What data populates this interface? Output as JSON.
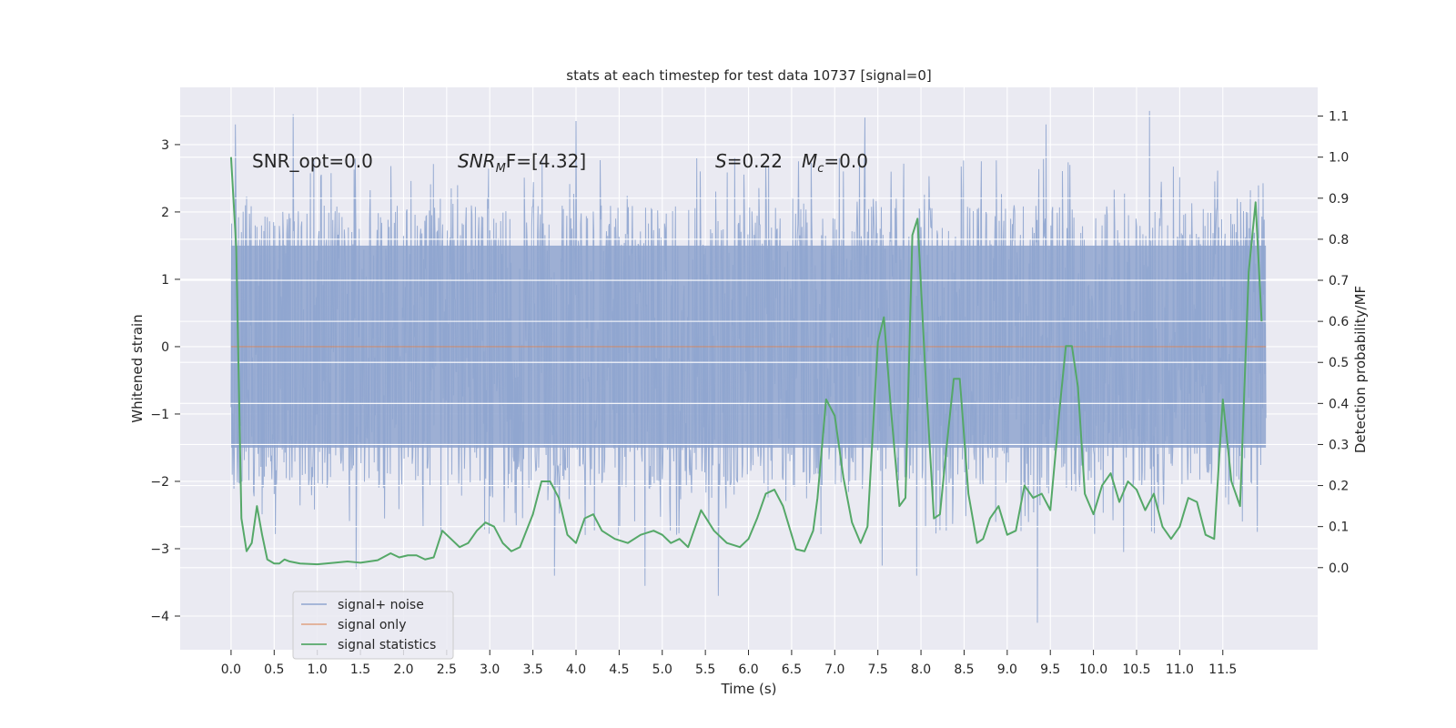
{
  "chart_data": {
    "type": "line",
    "title": "stats at each timestep for test data 10737 [signal=0]",
    "xlabel": "Time (s)",
    "ylabel": "Whitened strain",
    "y2label": "Detection probability/MF",
    "xlim": [
      -0.59,
      12.6
    ],
    "ylim": [
      -4.5,
      3.85
    ],
    "y2lim": [
      -0.2,
      1.17
    ],
    "xticks": [
      0.0,
      0.5,
      1.0,
      1.5,
      2.0,
      2.5,
      3.0,
      3.5,
      4.0,
      4.5,
      5.0,
      5.5,
      6.0,
      6.5,
      7.0,
      7.5,
      8.0,
      8.5,
      9.0,
      9.5,
      10.0,
      10.5,
      11.0,
      11.5
    ],
    "xtick_labels": [
      "0.0",
      "0.5",
      "1.0",
      "1.5",
      "2.0",
      "2.5",
      "3.0",
      "3.5",
      "4.0",
      "4.5",
      "5.0",
      "5.5",
      "6.0",
      "6.5",
      "7.0",
      "7.5",
      "8.0",
      "8.5",
      "9.0",
      "9.5",
      "10.0",
      "10.5",
      "11.0",
      "11.5"
    ],
    "yticks": [
      3,
      2,
      1,
      0,
      -1,
      -2,
      -3,
      -4
    ],
    "ytick_labels": [
      "3",
      "2",
      "1",
      "0",
      "−1",
      "−2",
      "−3",
      "−4"
    ],
    "y2ticks": [
      1.1,
      1.0,
      0.9,
      0.8,
      0.7,
      0.6,
      0.5,
      0.4,
      0.3,
      0.2,
      0.1,
      0.0
    ],
    "y2tick_labels": [
      "1.1",
      "1.0",
      "0.9",
      "0.8",
      "0.7",
      "0.6",
      "0.5",
      "0.4",
      "0.3",
      "0.2",
      "0.1",
      "0.0"
    ],
    "grid": true,
    "legend_position": "lower-left",
    "annotations": {
      "snr_opt": "SNR_opt=0.0",
      "snr_mf_sym": "SNR",
      "snr_mf_sub": "M",
      "snr_mf_rest": "F=[4.32]",
      "s_sym": "S",
      "s_rest": "=0.22",
      "mc_sym": "M",
      "mc_sub": "c",
      "mc_rest": "=0.0"
    },
    "series": [
      {
        "name": "signal+ noise",
        "color": "#8fa5cf",
        "axis": "left",
        "kind": "noise",
        "x_range": [
          0.0,
          12.0
        ],
        "core_band": [
          -1.5,
          1.5
        ],
        "envelope": [
          -4.1,
          3.5
        ],
        "peaks": [
          [
            0.05,
            3.3
          ],
          [
            0.72,
            3.45
          ],
          [
            4.0,
            3.35
          ],
          [
            7.35,
            3.4
          ],
          [
            9.45,
            3.3
          ],
          [
            10.65,
            3.5
          ],
          [
            11.9,
            3.05
          ]
        ],
        "troughs": [
          [
            1.45,
            -3.3
          ],
          [
            3.75,
            -3.4
          ],
          [
            4.8,
            -3.55
          ],
          [
            5.65,
            -3.7
          ],
          [
            7.55,
            -3.25
          ],
          [
            7.95,
            -3.4
          ],
          [
            9.35,
            -4.1
          ],
          [
            10.35,
            -3.05
          ],
          [
            11.9,
            -2.75
          ]
        ]
      },
      {
        "name": "signal only",
        "color": "#dd8452",
        "axis": "left",
        "x": [
          0.0,
          12.0
        ],
        "y": [
          0.0,
          0.0
        ]
      },
      {
        "name": "signal statistics",
        "color": "#55a868",
        "axis": "right",
        "x": [
          0.0,
          0.06,
          0.12,
          0.18,
          0.24,
          0.3,
          0.36,
          0.42,
          0.5,
          0.56,
          0.62,
          0.68,
          0.8,
          1.0,
          1.2,
          1.35,
          1.5,
          1.7,
          1.85,
          1.95,
          2.05,
          2.15,
          2.25,
          2.35,
          2.45,
          2.55,
          2.65,
          2.75,
          2.85,
          2.95,
          3.05,
          3.15,
          3.25,
          3.35,
          3.5,
          3.6,
          3.7,
          3.8,
          3.9,
          4.0,
          4.1,
          4.2,
          4.3,
          4.45,
          4.6,
          4.75,
          4.9,
          5.0,
          5.1,
          5.2,
          5.3,
          5.45,
          5.6,
          5.75,
          5.9,
          6.0,
          6.1,
          6.2,
          6.3,
          6.4,
          6.5,
          6.55,
          6.65,
          6.75,
          6.8,
          6.9,
          7.0,
          7.1,
          7.2,
          7.3,
          7.38,
          7.5,
          7.57,
          7.65,
          7.75,
          7.82,
          7.9,
          7.96,
          8.05,
          8.15,
          8.22,
          8.3,
          8.38,
          8.45,
          8.55,
          8.65,
          8.72,
          8.8,
          8.9,
          9.0,
          9.1,
          9.2,
          9.3,
          9.4,
          9.5,
          9.6,
          9.68,
          9.75,
          9.82,
          9.9,
          10.0,
          10.1,
          10.2,
          10.3,
          10.4,
          10.5,
          10.6,
          10.7,
          10.8,
          10.9,
          11.0,
          11.1,
          11.2,
          11.3,
          11.4,
          11.5,
          11.6,
          11.7,
          11.8,
          11.88,
          11.95
        ],
        "y": [
          1.0,
          0.78,
          0.12,
          0.04,
          0.06,
          0.15,
          0.08,
          0.02,
          0.01,
          0.01,
          0.02,
          0.015,
          0.01,
          0.008,
          0.012,
          0.015,
          0.012,
          0.018,
          0.035,
          0.025,
          0.03,
          0.03,
          0.02,
          0.025,
          0.09,
          0.07,
          0.05,
          0.06,
          0.09,
          0.11,
          0.1,
          0.06,
          0.04,
          0.05,
          0.13,
          0.21,
          0.21,
          0.17,
          0.08,
          0.06,
          0.12,
          0.13,
          0.09,
          0.07,
          0.06,
          0.08,
          0.09,
          0.08,
          0.06,
          0.07,
          0.05,
          0.14,
          0.09,
          0.06,
          0.05,
          0.07,
          0.12,
          0.18,
          0.19,
          0.15,
          0.08,
          0.045,
          0.04,
          0.09,
          0.17,
          0.41,
          0.37,
          0.22,
          0.11,
          0.06,
          0.1,
          0.55,
          0.61,
          0.39,
          0.15,
          0.17,
          0.81,
          0.85,
          0.48,
          0.12,
          0.13,
          0.3,
          0.46,
          0.46,
          0.18,
          0.06,
          0.07,
          0.12,
          0.15,
          0.08,
          0.09,
          0.2,
          0.17,
          0.18,
          0.14,
          0.37,
          0.54,
          0.54,
          0.44,
          0.18,
          0.13,
          0.2,
          0.23,
          0.16,
          0.21,
          0.19,
          0.14,
          0.18,
          0.1,
          0.07,
          0.1,
          0.17,
          0.16,
          0.08,
          0.07,
          0.41,
          0.21,
          0.15,
          0.72,
          0.89,
          0.6
        ]
      }
    ]
  }
}
